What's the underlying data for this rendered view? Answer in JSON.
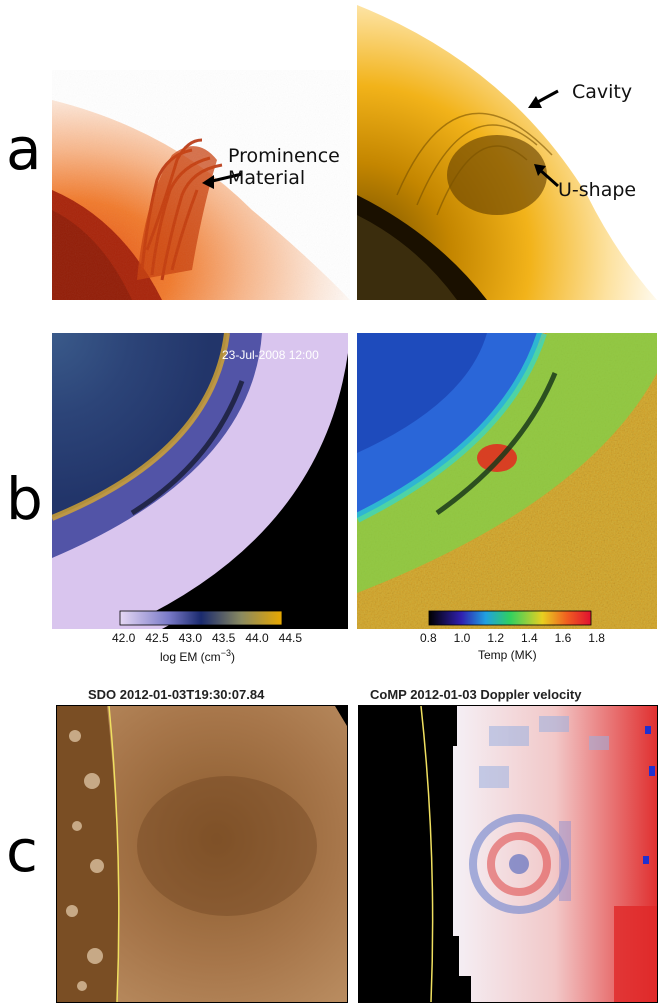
{
  "panel_letters": {
    "a": "a",
    "b": "b",
    "c": "c"
  },
  "row_a": {
    "left_label": "Prominence\nMaterial",
    "right_labels": {
      "cavity": "Cavity",
      "ushape": "U-shape"
    }
  },
  "row_b": {
    "timestamp": "23-Jul-2008 12:00",
    "left_colorbar": {
      "ticks": [
        "42.0",
        "42.5",
        "43.0",
        "43.5",
        "44.0",
        "44.5"
      ],
      "label_main": "log EM (cm",
      "label_sup": "−3",
      "label_end": ")"
    },
    "right_colorbar": {
      "ticks": [
        "0.8",
        "1.0",
        "1.2",
        "1.4",
        "1.6",
        "1.8"
      ],
      "label": "Temp (MK)"
    }
  },
  "row_c": {
    "left_title": "SDO 2012-01-03T19:30:07.84",
    "right_title": "CoMP 2012-01-03 Doppler velocity"
  },
  "colors": {
    "prominence_red": "#c2330a",
    "aia_gold": "#e8a600",
    "em_lilac": "#d8c2ec",
    "em_navy": "#1a2a6e",
    "temp_green": "#7fd24a",
    "sdo_brown": "#9a6a3a",
    "doppler_red": "#e03030",
    "doppler_blue": "#3040c0"
  }
}
